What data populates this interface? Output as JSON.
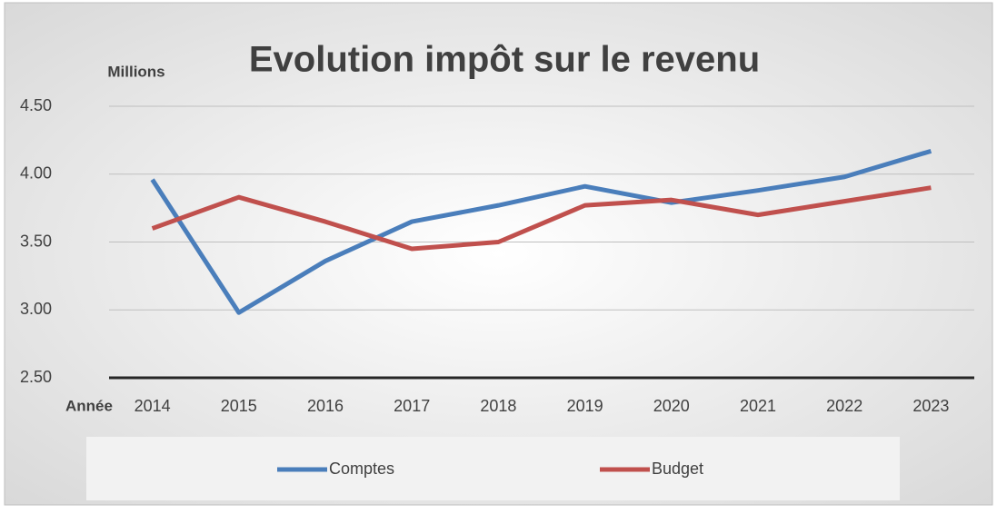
{
  "chart_data": {
    "type": "line",
    "title": "Evolution impôt sur le revenu",
    "y_label": "Millions",
    "x_label": "Année",
    "categories": [
      "2014",
      "2015",
      "2016",
      "2017",
      "2018",
      "2019",
      "2020",
      "2021",
      "2022",
      "2023"
    ],
    "series": [
      {
        "name": "Comptes",
        "color": "#4a7ebb",
        "values": [
          3.96,
          2.98,
          3.36,
          3.65,
          3.77,
          3.91,
          3.79,
          3.88,
          3.98,
          4.17
        ]
      },
      {
        "name": "Budget",
        "color": "#c0504d",
        "values": [
          3.6,
          3.83,
          3.65,
          3.45,
          3.5,
          3.77,
          3.81,
          3.7,
          3.8,
          3.9
        ]
      }
    ],
    "ylim": [
      2.5,
      4.5
    ],
    "yticks": [
      {
        "value": 2.5,
        "label": "2.50"
      },
      {
        "value": 3,
        "label": "3.00"
      },
      {
        "value": 3.5,
        "label": "3.50"
      },
      {
        "value": 4,
        "label": "4.00"
      },
      {
        "value": 4.5,
        "label": "4.50"
      }
    ],
    "grid": true
  }
}
